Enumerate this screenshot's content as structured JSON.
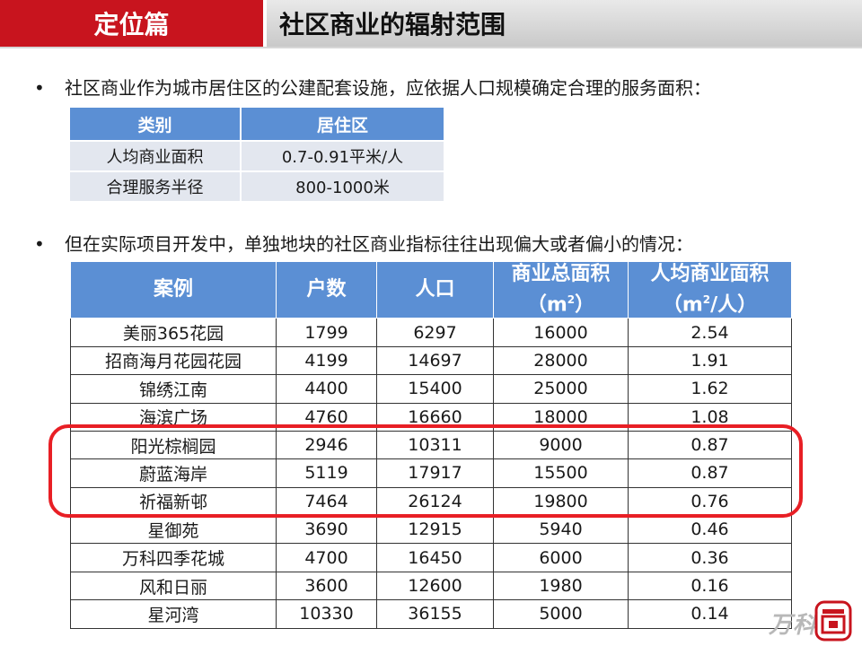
{
  "header": {
    "section_label": "定位篇",
    "title": "社区商业的辐射范围"
  },
  "bullets": [
    {
      "marker": "•",
      "text": "社区商业作为城市居住区的公建配套设施，应依据人口规模确定合理的服务面积："
    },
    {
      "marker": "•",
      "text": "但在实际项目开发中，单独地块的社区商业指标往往出现偏大或者偏小的情况："
    }
  ],
  "standard_table": {
    "headers": [
      "类别",
      "居住区"
    ],
    "rows": [
      [
        "人均商业面积",
        "0.7-0.91平米/人"
      ],
      [
        "合理服务半径",
        "800-1000米"
      ]
    ]
  },
  "cases_table": {
    "headers": {
      "case": "案例",
      "households": "户数",
      "population": "人口",
      "total_area_line1": "商业总面积",
      "total_area_unit_pre": "（m",
      "total_area_unit_sup": "2",
      "total_area_unit_post": "）",
      "per_capita_line1": "人均商业面积",
      "per_capita_unit_pre": "（m",
      "per_capita_unit_sup": "2",
      "per_capita_unit_post": "/人）"
    },
    "rows": [
      [
        "美丽365花园",
        "1799",
        "6297",
        "16000",
        "2.54"
      ],
      [
        "招商海月花园花园",
        "4199",
        "14697",
        "28000",
        "1.91"
      ],
      [
        "锦绣江南",
        "4400",
        "15400",
        "25000",
        "1.62"
      ],
      [
        "海滨广场",
        "4760",
        "16660",
        "18000",
        "1.08"
      ],
      [
        "阳光棕榈园",
        "2946",
        "10311",
        "9000",
        "0.87"
      ],
      [
        "蔚蓝海岸",
        "5119",
        "17917",
        "15500",
        "0.87"
      ],
      [
        "祈福新邨",
        "7464",
        "26124",
        "19800",
        "0.76"
      ],
      [
        "星御苑",
        "3690",
        "12915",
        "5940",
        "0.46"
      ],
      [
        "万科四季花城",
        "4700",
        "16450",
        "6000",
        "0.36"
      ],
      [
        "风和日丽",
        "3600",
        "12600",
        "1980",
        "0.16"
      ],
      [
        "星河湾",
        "10330",
        "36155",
        "5000",
        "0.14"
      ]
    ],
    "highlighted_rows": [
      "阳光棕榈园",
      "蔚蓝海岸",
      "祈福新邨"
    ]
  },
  "branding": {
    "wordmark": "万科",
    "seal_icon": "vanke-seal-icon"
  },
  "colors": {
    "header_red": "#c8141e",
    "table_header_blue": "#5b8fd4",
    "highlight_red": "#e81f25"
  }
}
